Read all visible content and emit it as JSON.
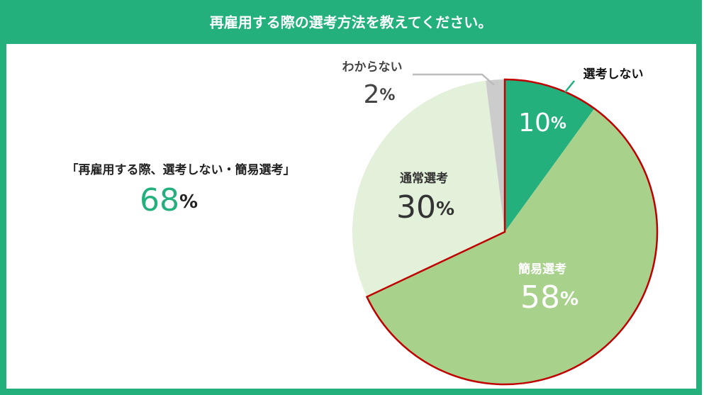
{
  "chart_data": {
    "type": "pie",
    "title": "再雇用する際の選考方法を教えてください。",
    "categories": [
      "選考しない",
      "簡易選考",
      "通常選考",
      "わからない"
    ],
    "values": [
      10,
      58,
      30,
      2
    ],
    "value_labels": [
      "10%",
      "58%",
      "30%",
      "2%"
    ],
    "colors": [
      "#23b07d",
      "#a8d18c",
      "#e3f0da",
      "#cccccc"
    ],
    "highlight": {
      "text": "「再雇用する際、選考しない・簡易選考」",
      "value": 68,
      "unit": "%",
      "color": "#23b07d",
      "outline_color": "#c00000"
    }
  }
}
